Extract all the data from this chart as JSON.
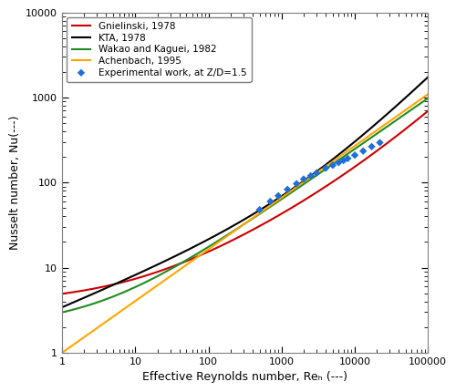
{
  "title": "",
  "xlabel": "Effective Reynolds number, Reₕ (---)",
  "ylabel": "Nusselt number, Nu(---)",
  "xlim": [
    1,
    100000
  ],
  "ylim": [
    1,
    10000
  ],
  "colors": {
    "gnielinski": "#CC0000",
    "kta": "#000000",
    "wakao": "#228B22",
    "achenbach": "#FFA500",
    "experimental": "#1E6FD9"
  },
  "legend_labels": [
    "Gnielinski, 1978",
    "KTA, 1978",
    "Wakao and Kaguei, 1982",
    "Achenbach, 1995",
    "Experimental work, at Z/D=1.5"
  ],
  "experimental_data": {
    "Re": [
      500,
      700,
      900,
      1200,
      1600,
      2000,
      2500,
      3000,
      4000,
      5000,
      6000,
      7000,
      8000,
      10000,
      13000,
      17000,
      22000
    ],
    "Nu": [
      48,
      60,
      70,
      83,
      97,
      110,
      120,
      130,
      148,
      160,
      172,
      182,
      192,
      210,
      235,
      265,
      295
    ]
  },
  "background_color": "#ffffff"
}
